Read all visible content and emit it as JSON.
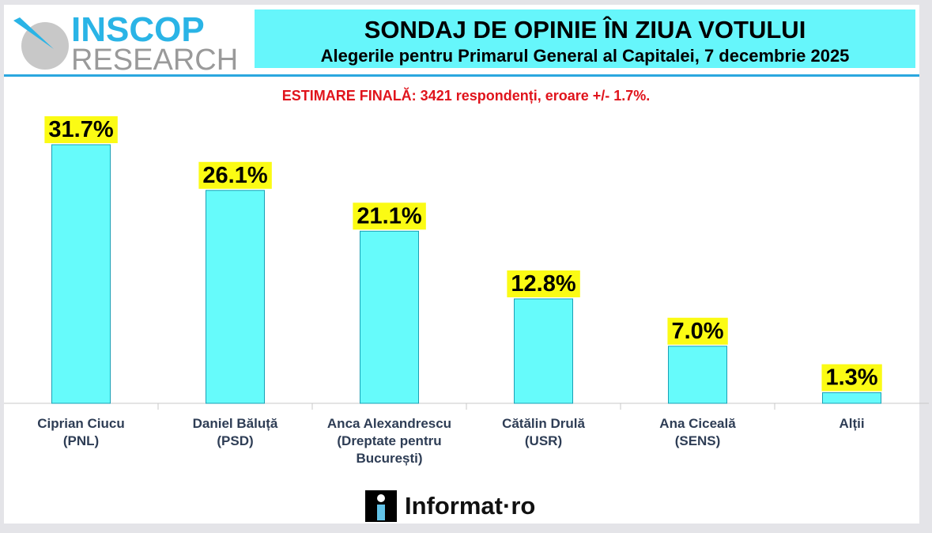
{
  "logo": {
    "line1": "INSCOP",
    "line2": "RESEARCH"
  },
  "header": {
    "title": "SONDAJ DE OPINIE ÎN ZIUA VOTULUI",
    "subtitle": "Alegerile pentru Primarul General al Capitalei, 7 decembrie 2025"
  },
  "note": "ESTIMARE FINALĂ: 3421 respondenți, eroare +/- 1.7%.",
  "footer_logo": "Informat·ro",
  "colors": {
    "bar": "#66fbfb",
    "bar_border": "#1aa0b5",
    "label_bg": "#fbfb14",
    "header_bg": "#66f6fb",
    "note": "#e0141c",
    "rule": "#2aa7df"
  },
  "chart_data": {
    "type": "bar",
    "categories": [
      [
        "Ciprian Ciucu",
        "(PNL)"
      ],
      [
        "Daniel Băluță",
        "(PSD)"
      ],
      [
        "Anca Alexandrescu",
        "(Dreptate pentru",
        "București)"
      ],
      [
        "Cătălin Drulă",
        "(USR)"
      ],
      [
        "Ana Ciceală",
        "(SENS)"
      ],
      [
        "Alții"
      ]
    ],
    "values": [
      31.7,
      26.1,
      21.1,
      12.8,
      7.0,
      1.3
    ],
    "value_labels": [
      "31.7%",
      "26.1%",
      "21.1%",
      "12.8%",
      "7.0%",
      "1.3%"
    ],
    "ylim": [
      0,
      35
    ],
    "grid": false
  }
}
